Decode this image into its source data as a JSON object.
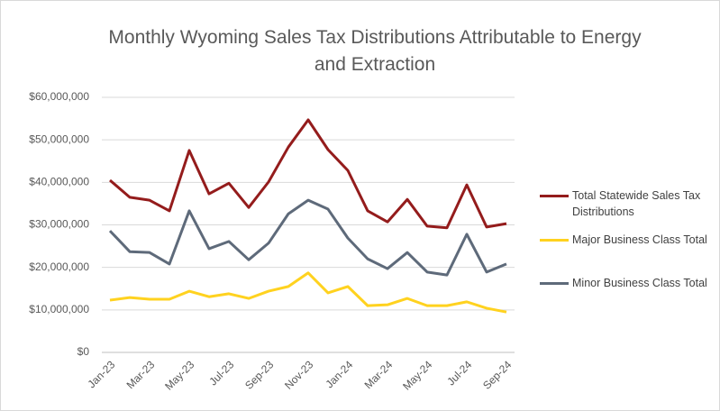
{
  "chart_data": {
    "type": "line",
    "title": "Monthly Wyoming Sales Tax Distributions Attributable to Energy and Extraction",
    "categories": [
      "Jan-23",
      null,
      "Mar-23",
      null,
      "May-23",
      null,
      "Jul-23",
      null,
      "Sep-23",
      null,
      "Nov-23",
      null,
      "Jan-24",
      null,
      "Mar-24",
      null,
      "May-24",
      null,
      "Jul-24",
      null,
      "Sep-24"
    ],
    "series": [
      {
        "name": "Total Statewide Sales Tax Distributions",
        "color": "#941c1c",
        "values": [
          40500000,
          36500000,
          35800000,
          33300000,
          47500000,
          37300000,
          39800000,
          34100000,
          40100000,
          48300000,
          54700000,
          47700000,
          42800000,
          33300000,
          30700000,
          36000000,
          29700000,
          29300000,
          39400000,
          29500000,
          30300000
        ]
      },
      {
        "name": "Major Business Class Total",
        "color": "#ffd21f",
        "values": [
          12300000,
          12900000,
          12500000,
          12500000,
          14400000,
          13100000,
          13800000,
          12700000,
          14400000,
          15500000,
          18700000,
          14000000,
          15500000,
          11000000,
          11200000,
          12700000,
          11000000,
          11000000,
          11900000,
          10400000,
          9500000
        ]
      },
      {
        "name": "Minor Business Class Total",
        "color": "#5e6a7a",
        "values": [
          28600000,
          23700000,
          23500000,
          20800000,
          33300000,
          24400000,
          26100000,
          21800000,
          25700000,
          32600000,
          35800000,
          33700000,
          26900000,
          22000000,
          19700000,
          23500000,
          18900000,
          18200000,
          27800000,
          18900000,
          20800000
        ]
      }
    ],
    "ylim": [
      0,
      60000000
    ],
    "yticks": [
      {
        "value": 0,
        "label": "$0"
      },
      {
        "value": 10000000,
        "label": "$10,000,000"
      },
      {
        "value": 20000000,
        "label": "$20,000,000"
      },
      {
        "value": 30000000,
        "label": "$30,000,000"
      },
      {
        "value": 40000000,
        "label": "$40,000,000"
      },
      {
        "value": 50000000,
        "label": "$50,000,000"
      },
      {
        "value": 60000000,
        "label": "$60,000,000"
      }
    ],
    "grid": true,
    "legend": "right"
  }
}
